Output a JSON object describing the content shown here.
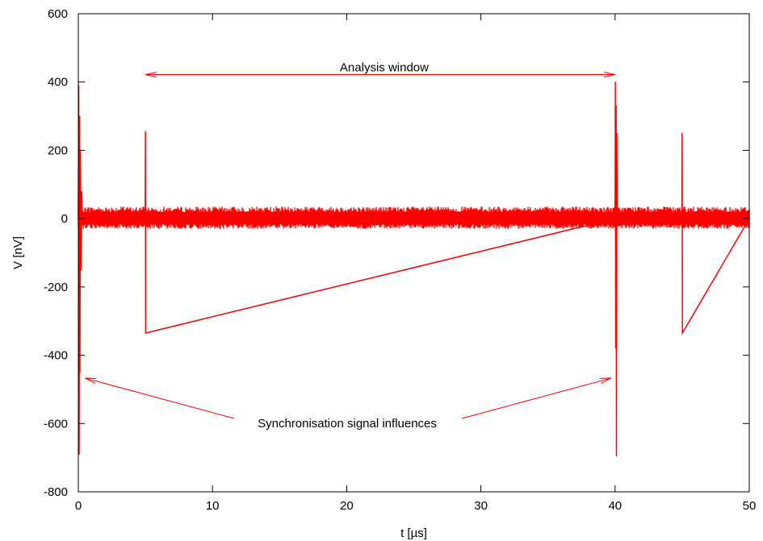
{
  "chart_data": {
    "type": "line",
    "title": "",
    "xlabel": "t [µs]",
    "ylabel": "V [nV]",
    "xlim": [
      0,
      50
    ],
    "ylim": [
      -800,
      600
    ],
    "xticks": [
      0,
      10,
      20,
      30,
      40,
      50
    ],
    "yticks": [
      -800,
      -600,
      -400,
      -200,
      0,
      200,
      400,
      600
    ],
    "grid": false,
    "legend": "none",
    "series": [
      {
        "color": "#ff0000",
        "noise_band": [
          -30,
          35
        ],
        "x": [
          0,
          0.03,
          0.06,
          0.09,
          0.12,
          0.15,
          0.2,
          0.25,
          0.3,
          4.98,
          5.0,
          5.02,
          40.0,
          40.02,
          40.05,
          40.08,
          40.1,
          40.13,
          40.16,
          44.98,
          45.0,
          45.02,
          50
        ],
        "y": [
          0,
          390,
          -690,
          300,
          -450,
          200,
          -150,
          80,
          0,
          0,
          255,
          -335,
          0,
          400,
          -380,
          330,
          -695,
          250,
          0,
          0,
          250,
          -335,
          0
        ]
      }
    ],
    "annotations": [
      {
        "text": "Analysis window",
        "x_from": 5,
        "x_to": 40,
        "y": 450,
        "style": "double-arrow"
      },
      {
        "text": "Synchronisation signal influences",
        "text_x": 20,
        "text_y": -600,
        "arrows_to": [
          [
            0.5,
            -500
          ],
          [
            39.7,
            -500
          ]
        ]
      }
    ]
  }
}
